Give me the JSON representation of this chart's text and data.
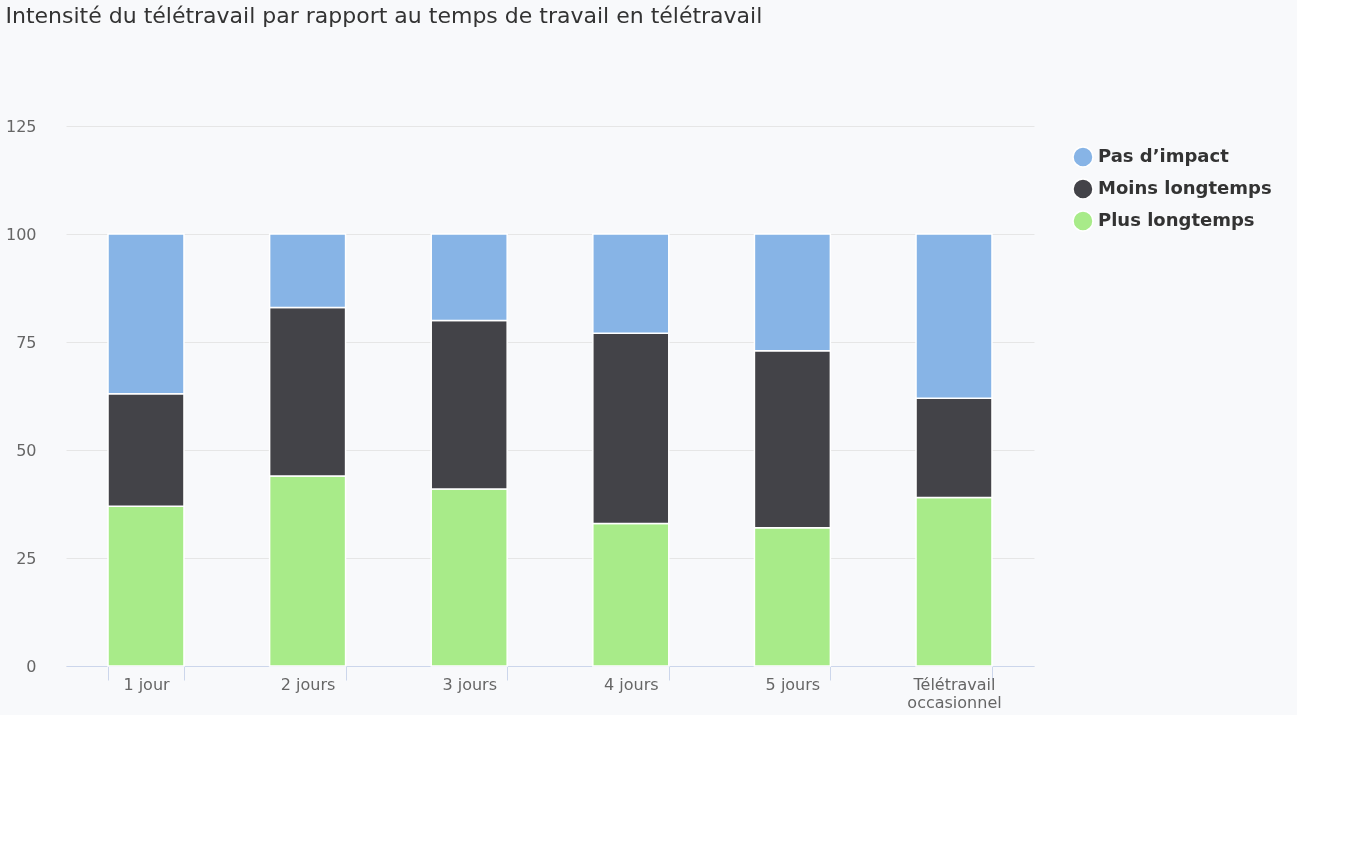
{
  "chart_data": {
    "type": "bar",
    "title": "Intensité du télétravail par rapport au temps de travail en télétravail",
    "categories": [
      "1 jour",
      "2 jours",
      "3 jours",
      "4 jours",
      "5 jours",
      "Télétravail occasionnel"
    ],
    "stacked": true,
    "series": [
      {
        "name": "Plus longtemps",
        "color": "#a8eb89",
        "values": [
          37,
          44,
          41,
          33,
          32,
          39
        ]
      },
      {
        "name": "Moins longtemps",
        "color": "#434348",
        "values": [
          26,
          39,
          39,
          44,
          41,
          23
        ]
      },
      {
        "name": "Pas d’impact",
        "color": "#87b4e6",
        "values": [
          37,
          17,
          20,
          23,
          27,
          38
        ]
      }
    ],
    "ylim": [
      0,
      125
    ],
    "yticks": [
      0,
      25,
      50,
      75,
      100,
      125
    ],
    "grid": "y",
    "legend": "right"
  }
}
